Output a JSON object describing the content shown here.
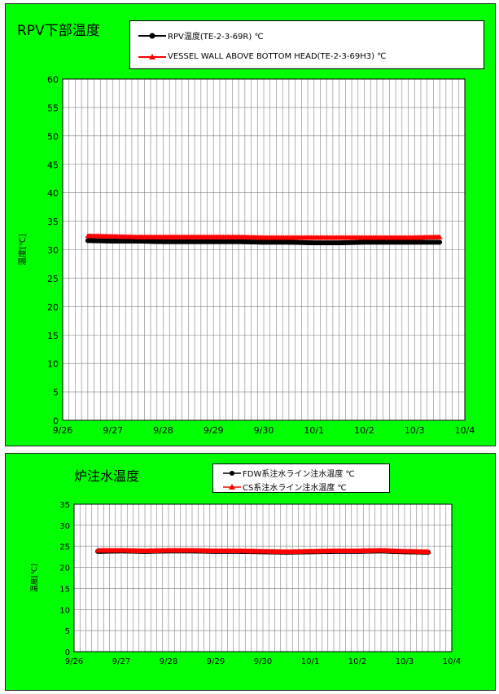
{
  "colors": {
    "panel_bg": "#00ff00",
    "plot_bg": "#ffffff",
    "series_black": "#000000",
    "series_red": "#ff0000",
    "grid": "#808080"
  },
  "chart_data": [
    {
      "type": "line",
      "title": "RPV下部温度",
      "xlabel": "",
      "ylabel": "温度[℃]",
      "ylim": [
        0,
        60
      ],
      "yticks": [
        0,
        5,
        10,
        15,
        20,
        25,
        30,
        35,
        40,
        45,
        50,
        55,
        60
      ],
      "x_range": [
        "9/26",
        "10/4"
      ],
      "xtick_labels": [
        "9/26",
        "9/27",
        "9/28",
        "9/29",
        "9/30",
        "10/1",
        "10/2",
        "10/3",
        "10/4"
      ],
      "grid": true,
      "legend_position": "top",
      "series": [
        {
          "name": "RPV温度(TE-2-3-69R) ℃",
          "color": "#000000",
          "marker": "circle",
          "x": [
            "9/26 12:00",
            "9/27 00:00",
            "9/27 12:00",
            "9/28 00:00",
            "9/28 12:00",
            "9/29 00:00",
            "9/29 12:00",
            "9/30 00:00",
            "9/30 12:00",
            "10/1 00:00",
            "10/1 12:00",
            "10/2 00:00",
            "10/2 12:00",
            "10/3 00:00",
            "10/3 12:00"
          ],
          "values": [
            31.6,
            31.5,
            31.5,
            31.4,
            31.4,
            31.4,
            31.4,
            31.3,
            31.3,
            31.2,
            31.2,
            31.3,
            31.3,
            31.3,
            31.3
          ]
        },
        {
          "name": "VESSEL WALL ABOVE BOTTOM HEAD(TE-2-3-69H3) ℃",
          "color": "#ff0000",
          "marker": "triangle",
          "x": [
            "9/26 12:00",
            "9/27 00:00",
            "9/27 12:00",
            "9/28 00:00",
            "9/28 12:00",
            "9/29 00:00",
            "9/29 12:00",
            "9/30 00:00",
            "9/30 12:00",
            "10/1 00:00",
            "10/1 12:00",
            "10/2 00:00",
            "10/2 12:00",
            "10/3 00:00",
            "10/3 12:00"
          ],
          "values": [
            32.4,
            32.3,
            32.2,
            32.2,
            32.2,
            32.2,
            32.2,
            32.1,
            32.1,
            32.1,
            32.1,
            32.1,
            32.1,
            32.1,
            32.2
          ]
        }
      ]
    },
    {
      "type": "line",
      "title": "炉注水温度",
      "xlabel": "",
      "ylabel": "温度[℃]",
      "ylim": [
        0,
        35
      ],
      "yticks": [
        0,
        5,
        10,
        15,
        20,
        25,
        30,
        35
      ],
      "x_range": [
        "9/26",
        "10/4"
      ],
      "xtick_labels": [
        "9/26",
        "9/27",
        "9/28",
        "9/29",
        "9/30",
        "10/1",
        "10/2",
        "10/3",
        "10/4"
      ],
      "grid": true,
      "legend_position": "top",
      "series": [
        {
          "name": "FDW系注水ライン注水温度 ℃",
          "color": "#000000",
          "marker": "circle",
          "x": [
            "9/26 12:00",
            "9/27 00:00",
            "9/27 12:00",
            "9/28 00:00",
            "9/28 12:00",
            "9/29 00:00",
            "9/29 12:00",
            "9/30 00:00",
            "9/30 12:00",
            "10/1 00:00",
            "10/1 12:00",
            "10/2 00:00",
            "10/2 12:00",
            "10/3 00:00",
            "10/3 12:00"
          ],
          "values": [
            23.8,
            23.9,
            23.8,
            23.9,
            23.9,
            23.8,
            23.8,
            23.7,
            23.6,
            23.7,
            23.8,
            23.8,
            23.9,
            23.7,
            23.6
          ]
        },
        {
          "name": "CS系注水ライン注水温度 ℃",
          "color": "#ff0000",
          "marker": "triangle",
          "x": [
            "9/26 12:00",
            "9/27 00:00",
            "9/27 12:00",
            "9/28 00:00",
            "9/28 12:00",
            "9/29 00:00",
            "9/29 12:00",
            "9/30 00:00",
            "9/30 12:00",
            "10/1 00:00",
            "10/1 12:00",
            "10/2 00:00",
            "10/2 12:00",
            "10/3 00:00",
            "10/3 12:00"
          ],
          "values": [
            24.0,
            24.0,
            23.9,
            24.0,
            24.0,
            23.9,
            23.9,
            23.8,
            23.7,
            23.8,
            23.9,
            23.9,
            24.0,
            23.8,
            23.7
          ]
        }
      ]
    }
  ]
}
